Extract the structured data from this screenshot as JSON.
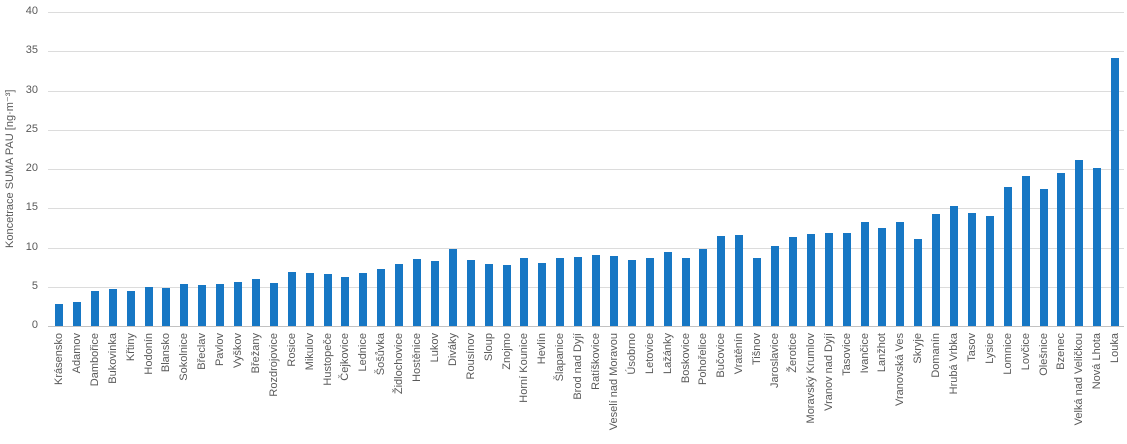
{
  "chart_data": {
    "type": "bar",
    "title": "",
    "xlabel": "",
    "ylabel": "Koncetrace SUMA PAU [ng·m⁻³]",
    "ylim": [
      0,
      40
    ],
    "ytick_interval": 5,
    "ytick_labels": [
      "0",
      "5",
      "10",
      "15",
      "20",
      "25",
      "30",
      "35",
      "40"
    ],
    "grid": true,
    "legend": false,
    "bar_color": "#1777C4",
    "text_color": "#595959",
    "gridline_color": "#DCDCDC",
    "categories": [
      "Krásensko",
      "Adamov",
      "Dambořice",
      "Bukovinka",
      "Křtiny",
      "Hodonín",
      "Blansko",
      "Sokolnice",
      "Břeclav",
      "Pavlov",
      "Vyškov",
      "Břežany",
      "Rozdrojovice",
      "Rosice",
      "Mikulov",
      "Hustopeče",
      "Čejkovice",
      "Lednice",
      "Šošůvka",
      "Židlochovice",
      "Hostěnice",
      "Lukov",
      "Diváky",
      "Rousínov",
      "Sloup",
      "Znojmo",
      "Horní Kounice",
      "Hevlín",
      "Šlapanice",
      "Brod nad Dyjí",
      "Ratíškovice",
      "Veselí nad Moravou",
      "Úsobrno",
      "Letovice",
      "Lažánky",
      "Boskovice",
      "Pohořelice",
      "Bučovice",
      "Vratěnín",
      "Tišnov",
      "Jaroslavice",
      "Žerotice",
      "Moravský Krumlov",
      "Vranov nad Dyjí",
      "Tasovice",
      "Ivančice",
      "Lanžhot",
      "Vranovská Ves",
      "Skryje",
      "Domanín",
      "Hrubá Vrbka",
      "Tasov",
      "Lysice",
      "Lomnice",
      "Lovčice",
      "Olešnice",
      "Bzenec",
      "Velká nad Veličkou",
      "Nová Lhota",
      "Louka"
    ],
    "values": [
      2.8,
      3.0,
      4.5,
      4.7,
      4.5,
      5.0,
      4.8,
      5.3,
      5.2,
      5.3,
      5.6,
      6.0,
      5.5,
      6.9,
      6.7,
      6.6,
      6.3,
      6.8,
      7.3,
      7.9,
      8.5,
      8.3,
      9.8,
      8.4,
      7.9,
      7.8,
      8.7,
      8.0,
      8.6,
      8.8,
      9.0,
      8.9,
      8.4,
      8.7,
      9.4,
      8.7,
      9.8,
      11.5,
      11.6,
      8.6,
      10.2,
      11.4,
      11.7,
      11.8,
      11.9,
      13.2,
      12.5,
      13.3,
      11.1,
      14.3,
      15.3,
      14.4,
      14.0,
      17.7,
      19.1,
      17.4,
      19.5,
      21.2,
      20.1,
      34.2
    ]
  }
}
